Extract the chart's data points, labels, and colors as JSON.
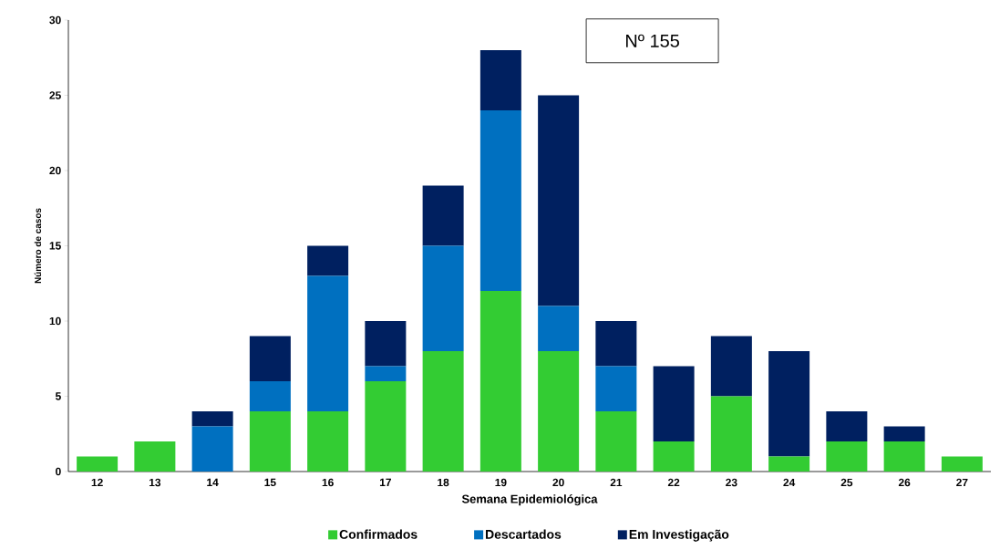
{
  "chart_data": {
    "type": "bar",
    "stacked": true,
    "xlabel": "Semana Epidemiológica",
    "ylabel": "Número de casos",
    "categories": [
      "12",
      "13",
      "14",
      "15",
      "16",
      "17",
      "18",
      "19",
      "20",
      "21",
      "22",
      "23",
      "24",
      "25",
      "26",
      "27"
    ],
    "series": [
      {
        "name": "Confirmados",
        "color": "#33cc33",
        "values": [
          1,
          2,
          0,
          4,
          4,
          6,
          8,
          12,
          8,
          4,
          2,
          5,
          1,
          2,
          2,
          1
        ]
      },
      {
        "name": "Descartados",
        "color": "#0070c0",
        "values": [
          0,
          0,
          3,
          2,
          9,
          1,
          7,
          12,
          3,
          3,
          0,
          0,
          0,
          0,
          0,
          0
        ]
      },
      {
        "name": "Em Investigação",
        "color": "#002060",
        "values": [
          0,
          0,
          1,
          3,
          2,
          3,
          4,
          4,
          14,
          3,
          5,
          4,
          7,
          2,
          1,
          0
        ]
      }
    ],
    "ylim": [
      0,
      30
    ],
    "yticks": [
      0,
      5,
      10,
      15,
      20,
      25,
      30
    ],
    "grid": false,
    "legend": "bottom",
    "annotations": [
      "Nº 155"
    ]
  }
}
